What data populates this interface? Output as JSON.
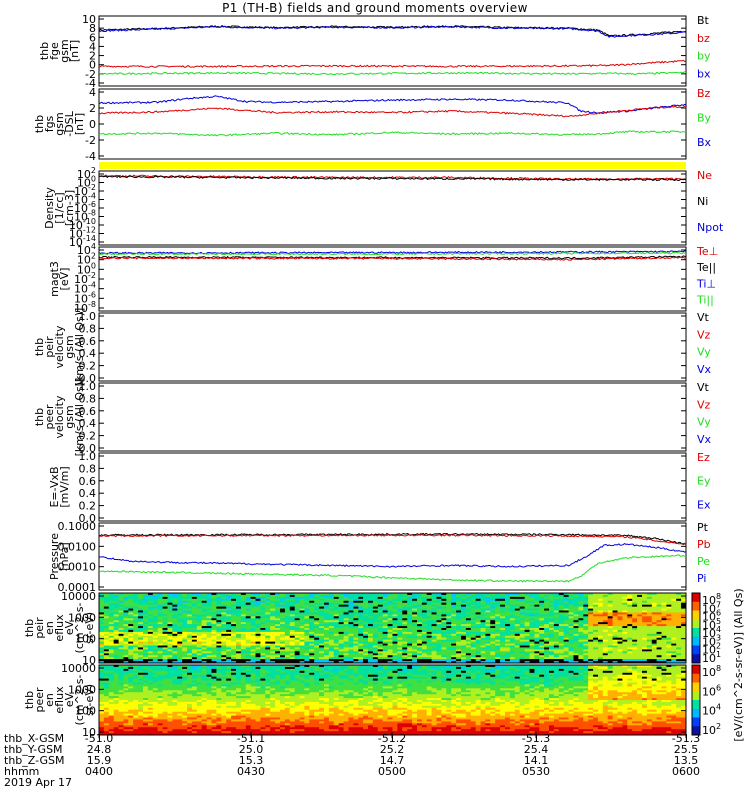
{
  "title": "P1 (TH-B) fields and ground moments overview",
  "colors": {
    "black": "#000000",
    "red": "#dd0000",
    "green": "#22dd22",
    "blue": "#0000dd",
    "yellow": "#ffff00"
  },
  "chart_data": {
    "type": "line",
    "x_axis": {
      "label": "hhmm",
      "ticks": [
        "0400",
        "0430",
        "0500",
        "0530",
        "0600"
      ],
      "ephemeris": [
        {
          "name": "thb_X-GSM",
          "values": [
            "-51.0",
            "-51.1",
            "-51.2",
            "-51.3",
            "-51.3"
          ]
        },
        {
          "name": "thb_Y-GSM",
          "values": [
            "24.8",
            "25.0",
            "25.2",
            "25.4",
            "25.5"
          ]
        },
        {
          "name": "thb_Z-GSM",
          "values": [
            "15.9",
            "15.3",
            "14.7",
            "14.1",
            "13.5"
          ]
        }
      ],
      "date": "2019 Apr 17"
    },
    "panels": [
      {
        "ylabel": [
          "thb",
          "fge",
          "gsm",
          "[nT]"
        ],
        "ticks": [
          "10",
          "8",
          "6",
          "4",
          "2",
          "0",
          "-2",
          "-4"
        ],
        "ylim": [
          -4.5,
          10.5
        ],
        "legend": [
          {
            "name": "Bt",
            "color": "black"
          },
          {
            "name": "bz",
            "color": "red"
          },
          {
            "name": "by",
            "color": "green"
          },
          {
            "name": "bx",
            "color": "blue"
          }
        ],
        "series": [
          {
            "name": "Bt",
            "color": "black",
            "x": [
              0,
              0.1,
              0.2,
              0.3,
              0.4,
              0.5,
              0.6,
              0.7,
              0.8,
              0.85,
              0.87,
              0.9,
              0.95,
              1.0
            ],
            "y": [
              7.5,
              7.8,
              8.3,
              8.0,
              8.2,
              8.1,
              8.3,
              8.0,
              7.9,
              7.5,
              6.2,
              6.4,
              6.8,
              7.3
            ]
          },
          {
            "name": "bx",
            "color": "blue",
            "x": [
              0,
              0.1,
              0.2,
              0.3,
              0.4,
              0.5,
              0.6,
              0.7,
              0.8,
              0.85,
              0.87,
              0.9,
              0.95,
              1.0
            ],
            "y": [
              7.3,
              7.7,
              8.2,
              7.9,
              8.1,
              8.0,
              8.2,
              7.9,
              7.8,
              7.3,
              6.0,
              6.3,
              6.6,
              7.0
            ]
          },
          {
            "name": "bz",
            "color": "red",
            "x": [
              0,
              0.2,
              0.4,
              0.6,
              0.8,
              0.87,
              0.92,
              1.0
            ],
            "y": [
              -0.3,
              -0.3,
              -0.2,
              -0.3,
              -0.2,
              -0.1,
              0.3,
              0.9
            ]
          },
          {
            "name": "by",
            "color": "green",
            "x": [
              0,
              0.2,
              0.4,
              0.6,
              0.8,
              0.87,
              0.92,
              1.0
            ],
            "y": [
              -1.9,
              -1.7,
              -1.9,
              -1.7,
              -1.9,
              -1.8,
              -1.9,
              -1.6
            ]
          }
        ]
      },
      {
        "ylabel": [
          "thb",
          "fgs",
          "gsm",
          "-DSL",
          "[nT]"
        ],
        "ticks": [
          "4",
          "2",
          "0",
          "-2",
          "-4"
        ],
        "ylim": [
          -5,
          4.5
        ],
        "legend": [
          {
            "name": "Bz",
            "color": "red"
          },
          {
            "name": "By",
            "color": "green"
          },
          {
            "name": "Bx",
            "color": "blue"
          }
        ],
        "series": [
          {
            "name": "Bx",
            "color": "blue",
            "x": [
              0,
              0.1,
              0.15,
              0.2,
              0.25,
              0.3,
              0.4,
              0.5,
              0.6,
              0.7,
              0.8,
              0.82,
              0.85,
              0.9,
              1.0
            ],
            "y": [
              2.6,
              2.7,
              3.2,
              3.5,
              2.8,
              2.7,
              2.8,
              3.0,
              3.1,
              3.0,
              2.6,
              1.5,
              1.3,
              1.5,
              2.4
            ]
          },
          {
            "name": "Bz",
            "color": "red",
            "x": [
              0,
              0.1,
              0.2,
              0.3,
              0.4,
              0.5,
              0.6,
              0.7,
              0.8,
              0.85,
              0.9,
              0.95,
              1.0
            ],
            "y": [
              1.2,
              1.4,
              1.9,
              1.3,
              1.4,
              1.3,
              1.5,
              1.2,
              0.8,
              1.2,
              1.6,
              2.0,
              2.1
            ]
          },
          {
            "name": "By",
            "color": "green",
            "x": [
              0,
              0.1,
              0.2,
              0.3,
              0.4,
              0.5,
              0.6,
              0.7,
              0.8,
              0.85,
              0.9,
              1.0
            ],
            "y": [
              -1.6,
              -1.5,
              -1.8,
              -1.5,
              -1.7,
              -1.4,
              -1.6,
              -1.5,
              -1.7,
              -1.6,
              -1.3,
              -1.3
            ]
          }
        ]
      },
      {
        "ylabel": [
          "Density",
          "[1/cc]",
          "[cm-3]"
        ],
        "ticks": [
          "10^2",
          "10^0",
          "10^-2",
          "10^-4",
          "10^-6",
          "10^-8",
          "10^-10",
          "10^-12",
          "10^-14"
        ],
        "ylim": [
          -15,
          2.2
        ],
        "log": true,
        "legend": [
          {
            "name": "Ne",
            "color": "red"
          },
          {
            "name": "Ni",
            "color": "black"
          },
          {
            "name": "Npot",
            "color": "blue"
          }
        ],
        "series": [
          {
            "name": "Ne",
            "color": "red",
            "x": [
              0,
              0.2,
              0.4,
              0.6,
              0.8,
              1.0
            ],
            "y": [
              1.1,
              0.9,
              0.7,
              0.7,
              0.3,
              0.4
            ]
          },
          {
            "name": "Ni",
            "color": "black",
            "x": [
              0,
              0.2,
              0.4,
              0.6,
              0.8,
              1.0
            ],
            "y": [
              0.9,
              0.7,
              0.5,
              0.4,
              0.2,
              0.2
            ]
          }
        ]
      },
      {
        "ylabel": [
          "magt3",
          "[eV]"
        ],
        "ticks": [
          "10^4",
          "10^2",
          "10^0",
          "10^-2",
          "10^-4",
          "10^-6",
          "10^-8"
        ],
        "ylim": [
          -8.5,
          4.2
        ],
        "log": true,
        "legend": [
          {
            "name": "Te⊥",
            "color": "red"
          },
          {
            "name": "Te||",
            "color": "black"
          },
          {
            "name": "Ti⊥",
            "color": "blue"
          },
          {
            "name": "Ti||",
            "color": "green"
          }
        ],
        "series": [
          {
            "name": "Ti⊥",
            "color": "blue",
            "x": [
              0,
              0.5,
              1.0
            ],
            "y": [
              3.0,
              3.1,
              3.3
            ]
          },
          {
            "name": "Ti||",
            "color": "green",
            "x": [
              0,
              0.5,
              1.0
            ],
            "y": [
              2.8,
              2.8,
              3.0
            ]
          },
          {
            "name": "Te||",
            "color": "black",
            "x": [
              0,
              0.5,
              0.8,
              1.0
            ],
            "y": [
              2.2,
              2.1,
              2.0,
              2.3
            ]
          },
          {
            "name": "Te⊥",
            "color": "red",
            "x": [
              0,
              0.5,
              0.8,
              1.0
            ],
            "y": [
              2.0,
              1.9,
              1.7,
              2.1
            ]
          }
        ]
      },
      {
        "ylabel": [
          "thb",
          "peir",
          "velocity",
          "gsm",
          "[km/s (All Qs)]"
        ],
        "ticks": [
          "1.0",
          "0.8",
          "0.6",
          "0.4",
          "0.2",
          "0.0"
        ],
        "ylim": [
          0,
          1
        ],
        "legend": [
          {
            "name": "Vt",
            "color": "black"
          },
          {
            "name": "Vz",
            "color": "red"
          },
          {
            "name": "Vy",
            "color": "green"
          },
          {
            "name": "Vx",
            "color": "blue"
          }
        ],
        "series": []
      },
      {
        "ylabel": [
          "thb",
          "peer",
          "velocity",
          "gsm",
          "[km/s (All Qs)]"
        ],
        "ticks": [
          "1.0",
          "0.8",
          "0.6",
          "0.4",
          "0.2",
          "0.0"
        ],
        "ylim": [
          0,
          1
        ],
        "legend": [
          {
            "name": "Vt",
            "color": "black"
          },
          {
            "name": "Vz",
            "color": "red"
          },
          {
            "name": "Vy",
            "color": "green"
          },
          {
            "name": "Vx",
            "color": "blue"
          }
        ],
        "series": []
      },
      {
        "ylabel": [
          "E=-VxB",
          "[mV/m]"
        ],
        "ticks": [
          "1.0",
          "0.8",
          "0.6",
          "0.4",
          "0.2",
          "0.0"
        ],
        "ylim": [
          0,
          1
        ],
        "legend": [
          {
            "name": "Ez",
            "color": "red"
          },
          {
            "name": "Ey",
            "color": "green"
          },
          {
            "name": "Ex",
            "color": "blue"
          }
        ],
        "series": []
      },
      {
        "ylabel": [
          "Pressure",
          "[nPa]"
        ],
        "ticks": [
          "0.1000",
          "0.0100",
          "0.0010",
          "0.0001"
        ],
        "ylim": [
          -4,
          -1
        ],
        "log": true,
        "legend": [
          {
            "name": "Pt",
            "color": "black"
          },
          {
            "name": "Pb",
            "color": "red"
          },
          {
            "name": "Pe",
            "color": "green"
          },
          {
            "name": "Pi",
            "color": "blue"
          }
        ],
        "series": [
          {
            "name": "Pt",
            "color": "black",
            "x": [
              0,
              0.3,
              0.6,
              0.8,
              0.9,
              0.95,
              1.0
            ],
            "y": [
              -1.54,
              -1.52,
              -1.5,
              -1.52,
              -1.56,
              -1.7,
              -1.95
            ]
          },
          {
            "name": "Pb",
            "color": "red",
            "x": [
              0,
              0.3,
              0.6,
              0.8,
              0.9,
              0.95,
              1.0
            ],
            "y": [
              -1.58,
              -1.56,
              -1.55,
              -1.58,
              -1.62,
              -1.8,
              -1.95
            ]
          },
          {
            "name": "Pi",
            "color": "blue",
            "x": [
              0,
              0.05,
              0.1,
              0.2,
              0.3,
              0.4,
              0.5,
              0.6,
              0.7,
              0.8,
              0.83,
              0.86,
              0.9,
              0.95,
              1.0
            ],
            "y": [
              -2.5,
              -2.7,
              -2.75,
              -2.8,
              -2.85,
              -2.9,
              -2.95,
              -2.9,
              -2.95,
              -2.9,
              -2.5,
              -2.0,
              -1.95,
              -2.1,
              -2.3
            ]
          },
          {
            "name": "Pe",
            "color": "green",
            "x": [
              0,
              0.1,
              0.2,
              0.3,
              0.4,
              0.5,
              0.6,
              0.7,
              0.8,
              0.82,
              0.85,
              0.9,
              0.95,
              1.0
            ],
            "y": [
              -3.15,
              -3.2,
              -3.25,
              -3.3,
              -3.35,
              -3.45,
              -3.55,
              -3.6,
              -3.6,
              -3.4,
              -2.8,
              -2.55,
              -2.5,
              -2.45
            ]
          }
        ]
      },
      {
        "type": "heatmap",
        "ylabel": [
          "thb",
          "peir",
          "en",
          "eflux",
          "eV",
          "(cm^2-s-",
          "sr-eV)"
        ],
        "ticks": [
          "10000",
          "1000",
          "100",
          "10"
        ],
        "ylim": [
          0.7,
          4.4
        ],
        "log": true,
        "colorbar": {
          "ticks": [
            "10^8",
            "10^7",
            "10^6",
            "10^5",
            "10^4",
            "10^3",
            "10^2",
            "10^1"
          ],
          "label": "[eV/(cm^2-s-sr-eV)] (All Qs)"
        }
      },
      {
        "type": "heatmap",
        "ylabel": [
          "thb",
          "peer",
          "en",
          "eflux",
          "eV",
          "(cm^2-s-",
          "sr-eV)"
        ],
        "ticks": [
          "10000",
          "1000",
          "100",
          "10"
        ],
        "ylim": [
          0.7,
          4.4
        ],
        "log": true,
        "colorbar": {
          "ticks": [
            "10^8",
            "10^6",
            "10^4",
            "10^2"
          ],
          "label": ""
        }
      }
    ]
  }
}
